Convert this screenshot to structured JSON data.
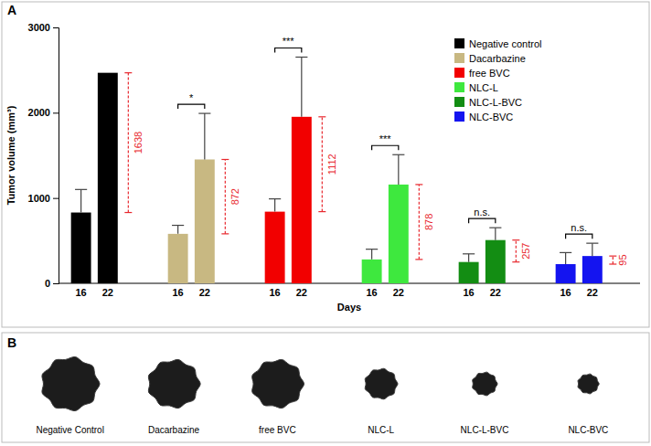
{
  "chart_data": {
    "type": "bar",
    "y_label": "Tumor volume (mm³)",
    "x_label": "Days",
    "categories": [
      "16",
      "22"
    ],
    "ylim": [
      0,
      3000
    ],
    "yticks": [
      0,
      1000,
      2000,
      3000
    ],
    "grid": false,
    "legend": "upper right",
    "series": [
      {
        "name": "Negative control",
        "color": "#000000",
        "values": [
          830,
          2468
        ],
        "errors": [
          270,
          null
        ],
        "difference": 1638
      },
      {
        "name": "Dacarbazine",
        "color": "#c8b882",
        "values": [
          580,
          1452
        ],
        "errors": [
          100,
          540
        ],
        "difference": 872,
        "significance": "*"
      },
      {
        "name": "free BVC",
        "color": "#f20000",
        "values": [
          840,
          1952
        ],
        "errors": [
          150,
          700
        ],
        "difference": 1112,
        "significance": "***"
      },
      {
        "name": "NLC-L",
        "color": "#3ee83e",
        "values": [
          280,
          1158
        ],
        "errors": [
          120,
          350
        ],
        "difference": 878,
        "significance": "***"
      },
      {
        "name": "NLC-L-BVC",
        "color": "#138d13",
        "values": [
          250,
          507
        ],
        "errors": [
          95,
          145
        ],
        "difference": 257,
        "significance": "n.s."
      },
      {
        "name": "NLC-BVC",
        "color": "#1414f0",
        "values": [
          225,
          320
        ],
        "errors": [
          135,
          150
        ],
        "difference": 95,
        "significance": "n.s."
      }
    ]
  },
  "panel_labels": [
    "A",
    "B"
  ],
  "images": [
    "Negative Control",
    "Dacarbazine",
    "free BVC",
    "NLC-L",
    "NLC-L-BVC",
    "NLC-BVC"
  ]
}
